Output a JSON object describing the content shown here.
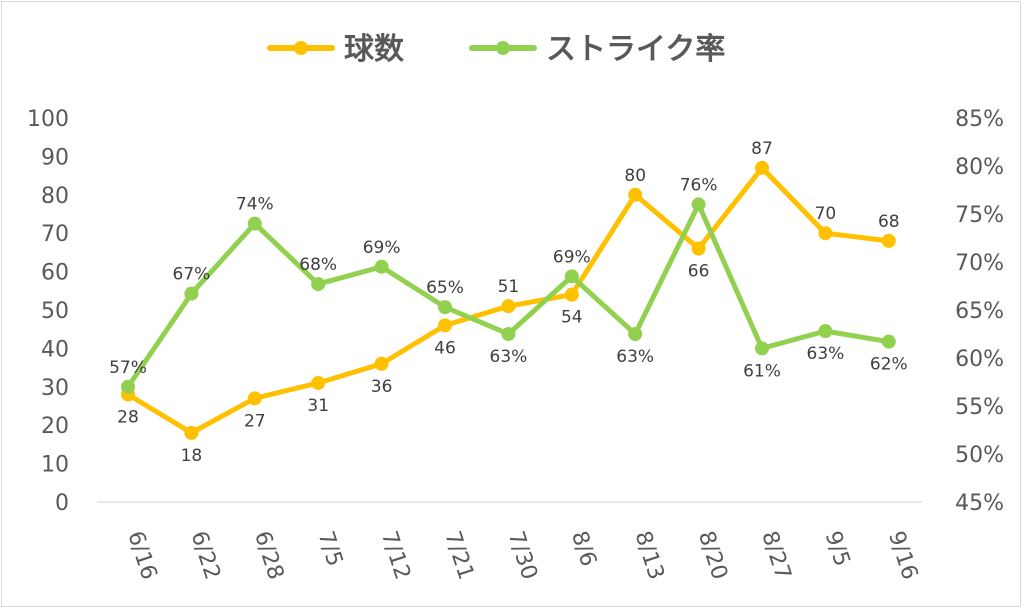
{
  "chart_data": {
    "type": "line",
    "categories": [
      "6/16",
      "6/22",
      "6/28",
      "7/5",
      "7/12",
      "7/21",
      "7/30",
      "8/6",
      "8/13",
      "8/20",
      "8/27",
      "9/5",
      "9/16"
    ],
    "series": [
      {
        "name": "球数",
        "axis": "left",
        "color": "#FFC000",
        "values": [
          28,
          18,
          27,
          31,
          36,
          46,
          51,
          54,
          80,
          66,
          87,
          70,
          68
        ],
        "labels": [
          "28",
          "18",
          "27",
          "31",
          "36",
          "46",
          "51",
          "54",
          "80",
          "66",
          "87",
          "70",
          "68"
        ],
        "label_positions": [
          "below",
          "below",
          "below",
          "below",
          "below",
          "below",
          "above",
          "below",
          "above",
          "below",
          "above",
          "above",
          "above"
        ]
      },
      {
        "name": "ストライク率",
        "axis": "right",
        "color": "#92D050",
        "values": [
          0.57,
          0.667,
          0.74,
          0.677,
          0.695,
          0.653,
          0.625,
          0.685,
          0.625,
          0.76,
          0.61,
          0.628,
          0.617
        ],
        "labels": [
          "57%",
          "67%",
          "74%",
          "68%",
          "69%",
          "65%",
          "63%",
          "69%",
          "63%",
          "76%",
          "61%",
          "63%",
          "62%"
        ],
        "label_positions": [
          "above",
          "above",
          "above",
          "above",
          "above",
          "above",
          "below",
          "above",
          "below",
          "above",
          "below",
          "below",
          "below"
        ]
      }
    ],
    "y_left": {
      "min": 0,
      "max": 100,
      "ticks": [
        "0",
        "10",
        "20",
        "30",
        "40",
        "50",
        "60",
        "70",
        "80",
        "90",
        "100"
      ]
    },
    "y_right": {
      "min": 0.45,
      "max": 0.85,
      "ticks": [
        "45%",
        "50%",
        "55%",
        "60%",
        "65%",
        "70%",
        "75%",
        "80%",
        "85%"
      ]
    },
    "grid": false,
    "legend_position": "top",
    "axis_color": "#d9d9d9"
  }
}
